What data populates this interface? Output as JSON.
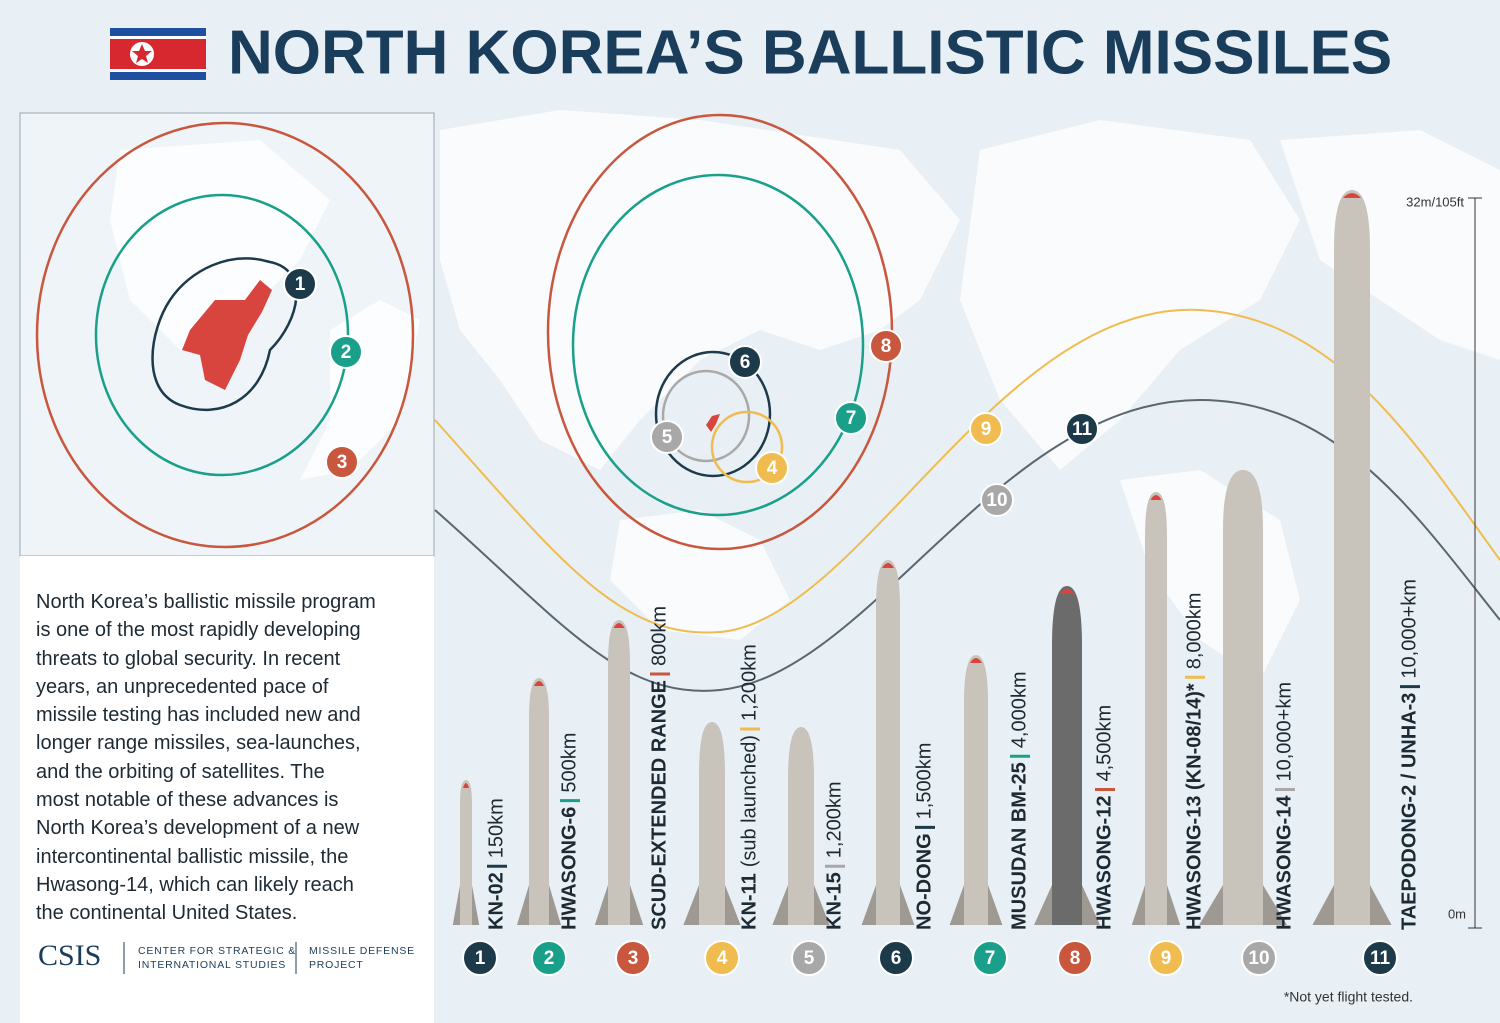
{
  "header": {
    "title": "NORTH KOREA’S BALLISTIC MISSILES"
  },
  "description": [
    "North Korea’s ballistic missile program",
    "is one of the most rapidly developing",
    "threats to global security. In recent",
    "years, an unprecedented pace of",
    "missile testing has included new and",
    "longer range missiles, sea-launches,",
    "and the orbiting of satellites. The",
    "most notable of these advances is",
    "North Korea’s development of a new",
    "intercontinental ballistic missile, the",
    "Hwasong-14, which can likely reach",
    "the continental United States."
  ],
  "logo": {
    "name": "CSIS",
    "org": [
      "CENTER FOR STRATEGIC &",
      "INTERNATIONAL STUDIES"
    ],
    "project": [
      "MISSILE DEFENSE",
      "PROJECT"
    ]
  },
  "scale": {
    "top": "32m/105ft",
    "bottom": "0m"
  },
  "missiles": [
    {
      "number": "1",
      "name": "KN-02",
      "range": "150km",
      "color": "#1d3a4a"
    },
    {
      "number": "2",
      "name": "HWASONG-6",
      "range": "500km",
      "color": "#1aa08a"
    },
    {
      "number": "3",
      "name": "SCUD-EXTENDED RANGE",
      "range": "800km",
      "color": "#c8573e"
    },
    {
      "number": "4",
      "name": "KN-11",
      "note": "(sub launched)",
      "range": "1,200km",
      "color": "#f0bc4f"
    },
    {
      "number": "5",
      "name": "KN-15",
      "range": "1,200km",
      "color": "#a8a8a8"
    },
    {
      "number": "6",
      "name": "NO-DONG",
      "range": "1,500km",
      "color": "#1d3a4a"
    },
    {
      "number": "7",
      "name": "MUSUDAN BM-25",
      "range": "4,000km",
      "color": "#1aa08a"
    },
    {
      "number": "8",
      "name": "HWASONG-12",
      "range": "4,500km",
      "color": "#c8573e"
    },
    {
      "number": "9",
      "name": "HWASONG-13 (KN-08/14)*",
      "range": "8,000km",
      "color": "#f0bc4f"
    },
    {
      "number": "10",
      "name": "HWASONG-14",
      "range": "10,000+km",
      "color": "#a8a8a8"
    },
    {
      "number": "11",
      "name": "TAEPODONG-2 / UNHA-3",
      "range": "10,000+km",
      "color": "#1d3a4a"
    }
  ],
  "footnote": "*Not yet flight tested."
}
